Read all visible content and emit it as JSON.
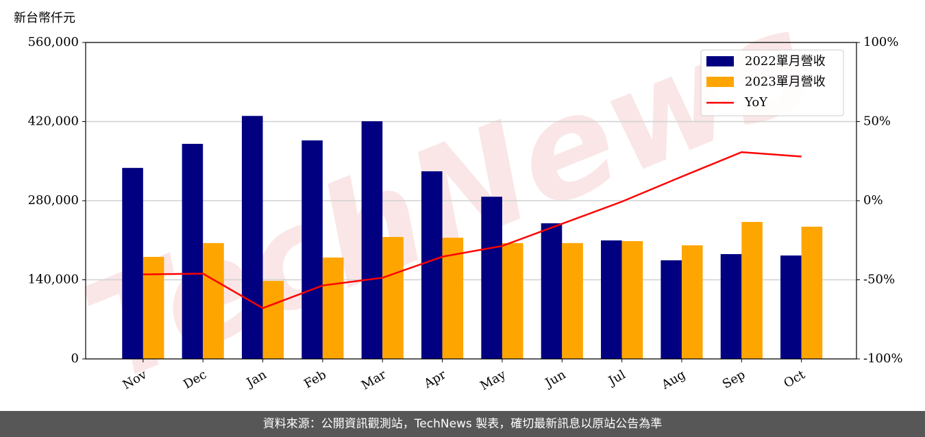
{
  "chart_data": {
    "type": "bar-line",
    "y_axis_label": "新台幣仟元",
    "watermark": "TechNews",
    "source": "資料來源：公開資訊觀測站，TechNews 製表，確切最新訊息以原站公告為準",
    "categories": [
      "Nov",
      "Dec",
      "Jan",
      "Feb",
      "Mar",
      "Apr",
      "May",
      "Jun",
      "Jul",
      "Aug",
      "Sep",
      "Oct"
    ],
    "series": [
      {
        "name": "2022單月營收",
        "color": "#000080",
        "kind": "bar",
        "values": [
          338000,
          380600,
          430000,
          386700,
          420600,
          332000,
          287000,
          240000,
          209700,
          174500,
          185500,
          183000
        ]
      },
      {
        "name": "2023單月營收",
        "color": "#ffa500",
        "kind": "bar",
        "values": [
          180600,
          205000,
          138000,
          179400,
          215800,
          214500,
          205000,
          205000,
          208500,
          201000,
          242400,
          234000
        ]
      },
      {
        "name": "YoY",
        "color": "#ff0000",
        "kind": "line",
        "axis": "y2",
        "values": [
          -46.6,
          -46.1,
          -67.9,
          -53.6,
          -48.7,
          -35.4,
          -28.6,
          -14.6,
          -0.6,
          15.2,
          30.7,
          27.9
        ]
      }
    ],
    "ylim": [
      0,
      560000
    ],
    "yticks": [
      0,
      {
        "value": 140000,
        "label": "140,000"
      },
      {
        "value": 280000,
        "label": "280,000"
      },
      {
        "value": 420000,
        "label": "420,000"
      },
      {
        "value": 560000,
        "label": "560,000"
      }
    ],
    "y2lim": [
      -100,
      100
    ],
    "y2ticks": [
      {
        "value": -100,
        "label": "-100%"
      },
      {
        "value": -50,
        "label": "-50%"
      },
      {
        "value": 0,
        "label": "0%"
      },
      {
        "value": 50,
        "label": "50%"
      },
      {
        "value": 100,
        "label": "100%"
      }
    ],
    "grid": true,
    "legend": "upper right"
  }
}
